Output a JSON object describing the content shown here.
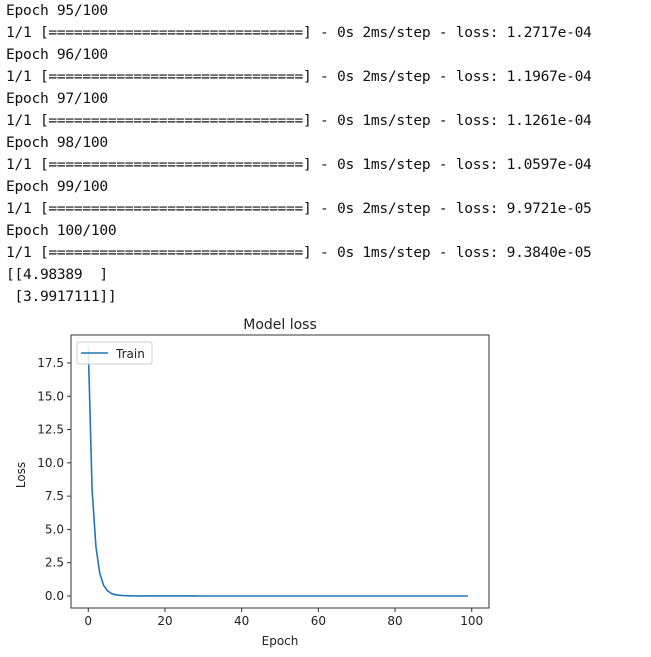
{
  "output_log": [
    "Epoch 95/100",
    "1/1 [==============================] - 0s 2ms/step - loss: 1.2717e-04",
    "Epoch 96/100",
    "1/1 [==============================] - 0s 2ms/step - loss: 1.1967e-04",
    "Epoch 97/100",
    "1/1 [==============================] - 0s 1ms/step - loss: 1.1261e-04",
    "Epoch 98/100",
    "1/1 [==============================] - 0s 1ms/step - loss: 1.0597e-04",
    "Epoch 99/100",
    "1/1 [==============================] - 0s 2ms/step - loss: 9.9721e-05",
    "Epoch 100/100",
    "1/1 [==============================] - 0s 1ms/step - loss: 9.3840e-05",
    "[[4.98389  ]",
    " [3.9917111]]"
  ],
  "chart_data": {
    "type": "line",
    "title": "Model loss",
    "xlabel": "Epoch",
    "ylabel": "Loss",
    "xlim": [
      -4.5,
      104.5
    ],
    "ylim": [
      -0.9,
      19.6
    ],
    "xticks": [
      0,
      20,
      40,
      60,
      80,
      100
    ],
    "xtick_labels": [
      "0",
      "20",
      "40",
      "60",
      "80",
      "100"
    ],
    "yticks": [
      0,
      2.5,
      5,
      7.5,
      10,
      12.5,
      15,
      17.5
    ],
    "ytick_labels": [
      "0.0",
      "2.5",
      "5.0",
      "7.5",
      "10.0",
      "12.5",
      "15.0",
      "17.5"
    ],
    "grid": false,
    "legend": {
      "position": "top-left",
      "entries": [
        "Train"
      ]
    },
    "series": [
      {
        "name": "Train",
        "color": "#1f77b4",
        "values": [
          18.7,
          8.0,
          3.7,
          1.7,
          0.8,
          0.4,
          0.2,
          0.1,
          0.06,
          0.035,
          0.022,
          0.015,
          0.011,
          0.009,
          0.0075,
          0.0065,
          0.0058,
          0.0052,
          0.0047,
          0.0043,
          0.004,
          0.0037,
          0.0034,
          0.0032,
          0.003,
          0.0028,
          0.0026,
          0.0024,
          0.0023,
          0.0021,
          0.002,
          0.0019,
          0.0018,
          0.0017,
          0.0016,
          0.0015,
          0.0014,
          0.0013,
          0.0012,
          0.0012,
          0.0011,
          0.001,
          0.00097,
          0.00092,
          0.00087,
          0.00082,
          0.00077,
          0.00073,
          0.00069,
          0.00065,
          0.00061,
          0.00058,
          0.00055,
          0.00052,
          0.00049,
          0.00046,
          0.00044,
          0.00041,
          0.00039,
          0.00037,
          0.00035,
          0.00033,
          0.00031,
          0.0003,
          0.00028,
          0.00027,
          0.00025,
          0.00024,
          0.00023,
          0.00022,
          0.00021,
          0.0002,
          0.00019,
          0.00018,
          0.00017,
          0.00016,
          0.00016,
          0.00015,
          0.00015,
          0.00014,
          0.00014,
          0.00013,
          0.00013,
          0.00013,
          0.00013,
          0.00013,
          0.00013,
          0.00013,
          0.00013,
          0.00013,
          0.00013,
          0.00013,
          0.00013,
          0.00013,
          0.00012717,
          0.00011967,
          0.00011261,
          0.00010597,
          9.9721e-05,
          9.384e-05
        ]
      }
    ]
  }
}
